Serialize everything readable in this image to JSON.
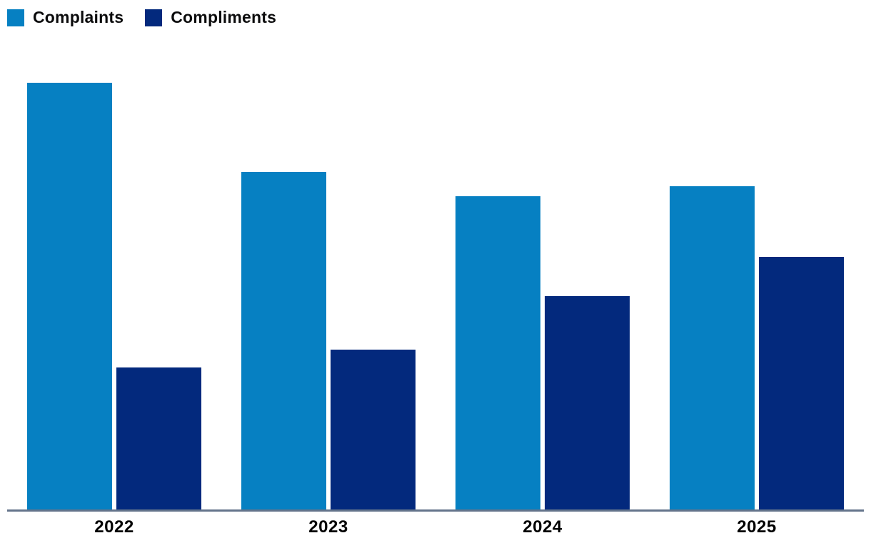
{
  "chart_data": {
    "type": "bar",
    "categories": [
      "2022",
      "2023",
      "2024",
      "2025"
    ],
    "series": [
      {
        "name": "Complaints",
        "color": "#0680C2",
        "values": [
          600,
          475,
          440,
          455
        ]
      },
      {
        "name": "Compliments",
        "color": "#03297D",
        "values": [
          200,
          225,
          300,
          355
        ]
      }
    ],
    "title": "",
    "xlabel": "",
    "ylabel": "",
    "ylim": [
      0,
      620
    ],
    "grid": false,
    "y_axis_visible": false,
    "legend_position": "top-left",
    "axis_line_color": "#64748b"
  }
}
